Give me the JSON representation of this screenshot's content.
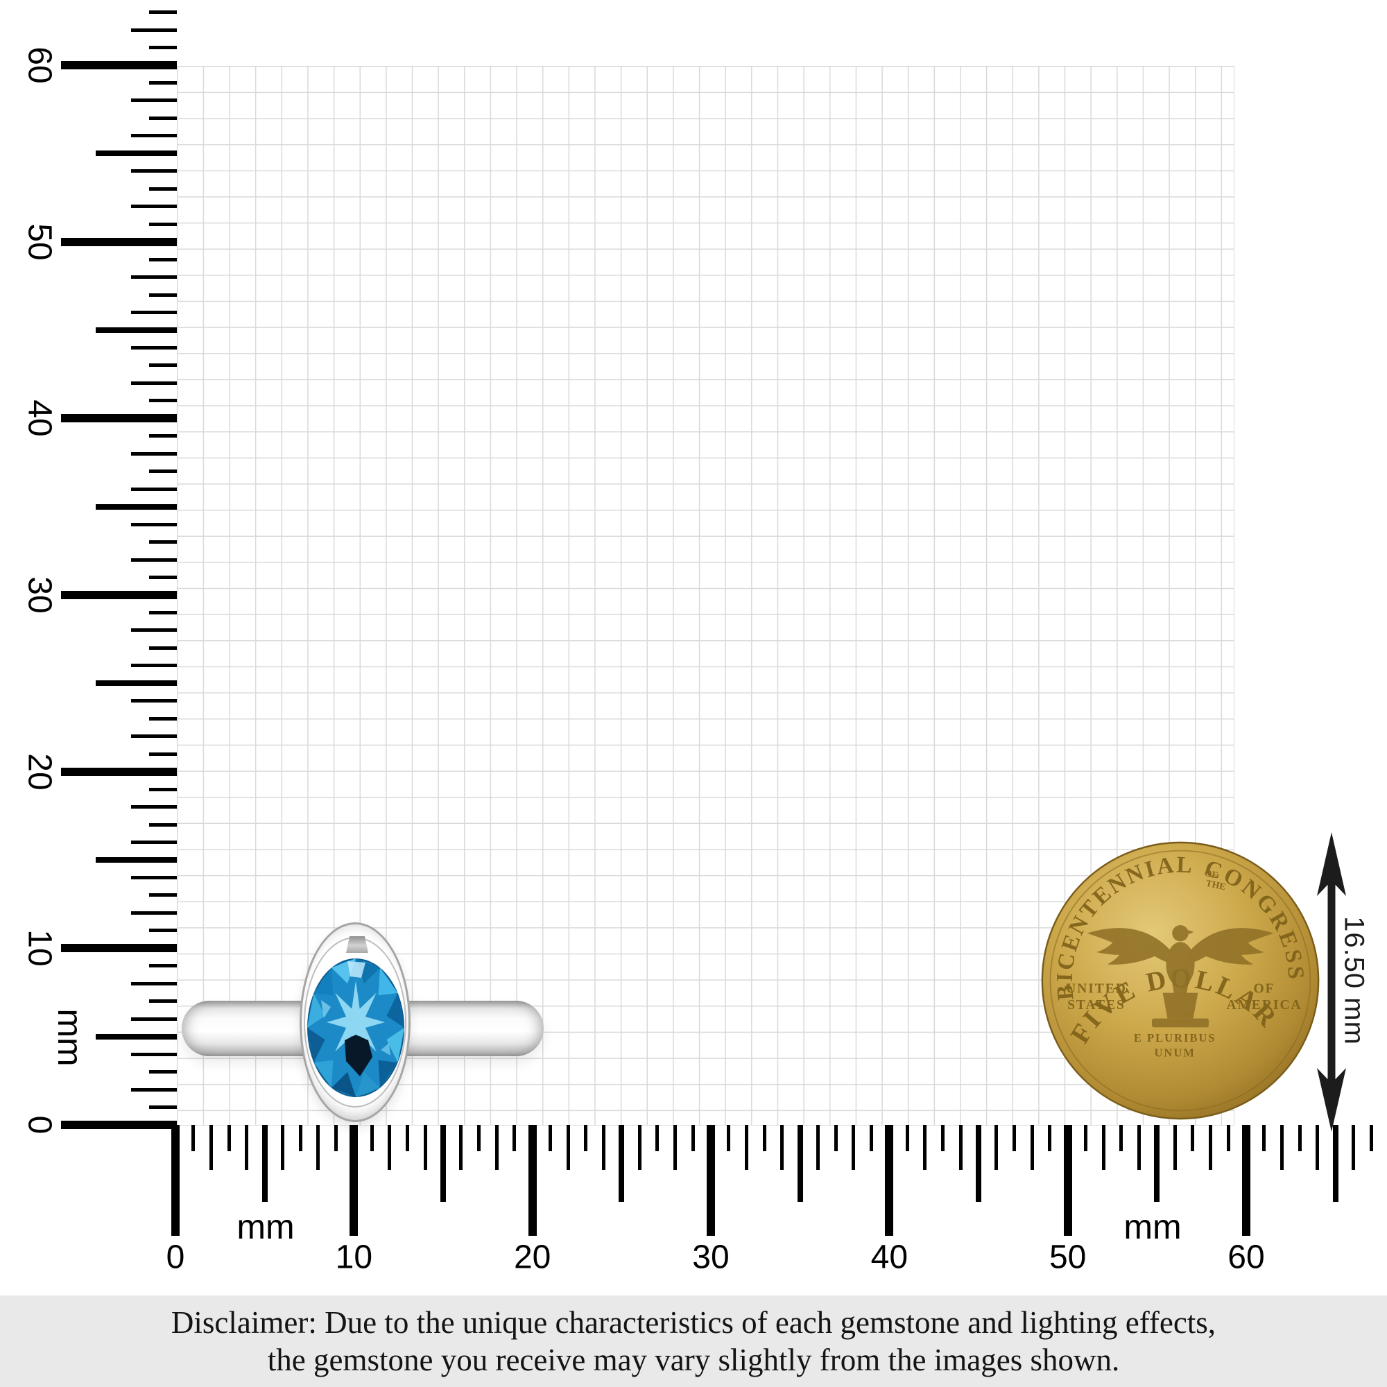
{
  "rulers": {
    "unit_label": "mm",
    "horizontal": {
      "labels": [
        "0",
        "10",
        "20",
        "30",
        "40",
        "50",
        "60"
      ]
    },
    "vertical": {
      "labels": [
        "0",
        "10",
        "20",
        "30",
        "40",
        "50",
        "60"
      ]
    }
  },
  "measurement": {
    "coin_diameter_label": "16.50 mm"
  },
  "coin": {
    "legend_left": "BICENTENNIAL",
    "legend_mid_top": "OF",
    "legend_mid_bottom": "THE",
    "legend_right": "CONGRESS",
    "left_line1": "UNITED",
    "left_line2": "STATES",
    "right_line1": "OF",
    "right_line2": "AMERICA",
    "motto_line1": "E PLURIBUS",
    "motto_line2": "UNUM",
    "denomination": "FIVE DOLLARS"
  },
  "disclaimer": {
    "line1": "Disclaimer: Due to the unique characteristics of each gemstone and lighting effects,",
    "line2": "the gemstone you receive may vary slightly from the images shown."
  },
  "colors": {
    "gem_blue": "#1b8ac6",
    "coin_gold": "#c5a246",
    "grid_line": "#d9d9d9",
    "tick_black": "#000000",
    "disclaimer_bg": "#e9e9e9"
  }
}
